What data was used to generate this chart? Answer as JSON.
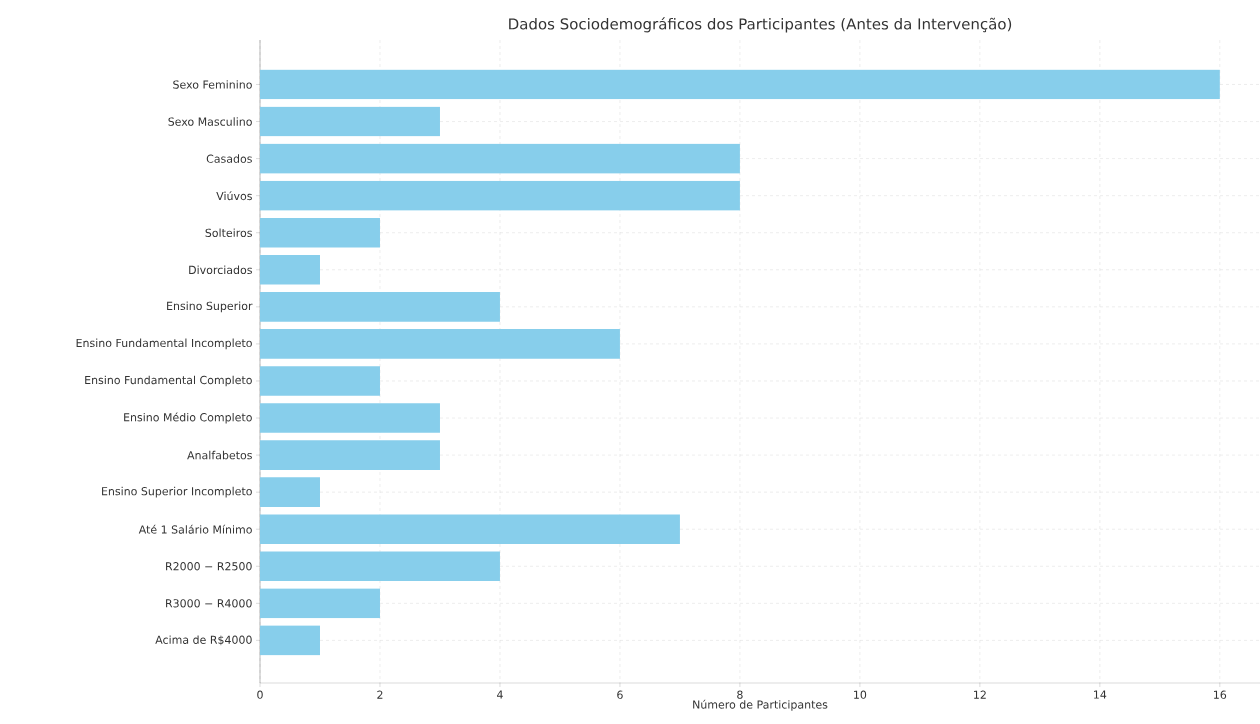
{
  "chart_data": {
    "type": "bar",
    "orientation": "horizontal",
    "title": "Dados Sociodemográficos dos Participantes (Antes da Intervenção)",
    "xlabel": "Número de Participantes",
    "categories": [
      "Sexo Feminino",
      "Sexo Masculino",
      "Casados",
      "Viúvos",
      "Solteiros",
      "Divorciados",
      "Ensino Superior",
      "Ensino Fundamental Incompleto",
      "Ensino Fundamental Completo",
      "Ensino Médio Completo",
      "Analfabetos",
      "Ensino Superior Incompleto",
      "Até 1 Salário Mínimo",
      "R2000 − R2500",
      "R3000 − R4000",
      "Acima de R$4000"
    ],
    "values": [
      16,
      3,
      8,
      8,
      2,
      1,
      4,
      6,
      2,
      3,
      3,
      1,
      7,
      4,
      2,
      1
    ],
    "color": "#87ceeb",
    "xlim": [
      0,
      16.67
    ],
    "xticks": [
      0,
      2,
      4,
      6,
      8,
      10,
      12,
      14,
      16
    ],
    "grid": true
  }
}
